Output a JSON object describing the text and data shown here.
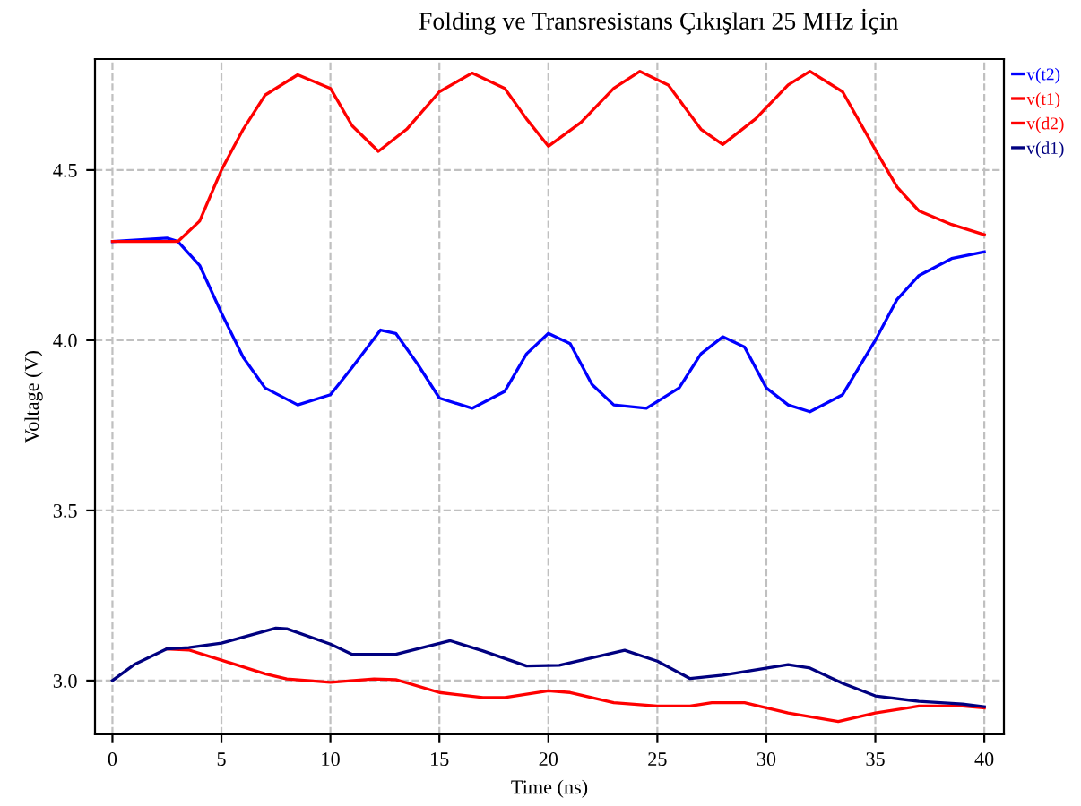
{
  "chart_data": {
    "type": "line",
    "title": "Folding ve Transresistans Çıkışları 25 MHz İçin",
    "xlabel": "Time (ns)",
    "ylabel": "Voltage (V)",
    "xlim": [
      -0.8,
      40.9
    ],
    "ylim": [
      2.842,
      4.826
    ],
    "xticks": [
      0,
      5,
      10,
      15,
      20,
      25,
      30,
      35,
      40
    ],
    "yticks": [
      {
        "value": 3.0,
        "label": "3.0"
      },
      {
        "value": 3.5,
        "label": "3.5"
      },
      {
        "value": 4.0,
        "label": "4.0"
      },
      {
        "value": 4.5,
        "label": "4.5"
      }
    ],
    "grid": true,
    "legend": "top right",
    "line_style": "solid",
    "marker": "none",
    "series": [
      {
        "name": "v(t2)",
        "color": "#0000ff",
        "x": [
          0,
          2.5,
          3,
          4,
          5,
          6,
          7,
          8.5,
          10,
          11,
          12.3,
          13,
          14,
          15,
          16.5,
          18,
          19,
          20,
          21,
          22,
          23,
          24.5,
          26,
          27,
          28,
          29,
          30,
          31,
          32,
          33.5,
          35,
          36,
          37,
          38.5,
          40
        ],
        "values": [
          4.29,
          4.3,
          4.29,
          4.22,
          4.08,
          3.95,
          3.86,
          3.81,
          3.84,
          3.92,
          4.03,
          4.02,
          3.93,
          3.83,
          3.8,
          3.85,
          3.96,
          4.02,
          3.99,
          3.87,
          3.81,
          3.8,
          3.86,
          3.96,
          4.01,
          3.98,
          3.86,
          3.81,
          3.79,
          3.84,
          4.0,
          4.12,
          4.19,
          4.24,
          4.26
        ]
      },
      {
        "name": "v(t1)",
        "color": "#ff0000",
        "x": [
          0,
          3,
          4,
          5,
          6,
          7,
          8.5,
          10,
          11,
          12.2,
          13.5,
          15,
          16.5,
          18,
          19,
          20,
          21.5,
          23,
          24.2,
          25.5,
          27,
          28,
          29.5,
          31,
          32,
          33.5,
          35,
          36,
          37,
          38.5,
          40
        ],
        "values": [
          4.29,
          4.29,
          4.35,
          4.5,
          4.62,
          4.72,
          4.78,
          4.74,
          4.63,
          4.555,
          4.62,
          4.73,
          4.785,
          4.74,
          4.65,
          4.57,
          4.64,
          4.74,
          4.79,
          4.75,
          4.62,
          4.575,
          4.65,
          4.75,
          4.79,
          4.73,
          4.56,
          4.45,
          4.38,
          4.34,
          4.31
        ]
      },
      {
        "name": "v(d2)",
        "color": "#ff0000",
        "x": [
          2.5,
          3.5,
          5,
          7,
          8,
          10,
          12,
          13,
          15,
          17,
          18,
          20,
          21,
          23,
          25,
          26.5,
          27.5,
          29,
          31,
          33.3,
          35,
          37,
          39,
          40
        ],
        "values": [
          3.093,
          3.09,
          3.06,
          3.02,
          3.005,
          2.995,
          3.005,
          3.003,
          2.965,
          2.95,
          2.95,
          2.97,
          2.965,
          2.935,
          2.925,
          2.925,
          2.935,
          2.935,
          2.905,
          2.88,
          2.905,
          2.925,
          2.925,
          2.92
        ]
      },
      {
        "name": "v(d1)",
        "color": "#000080",
        "x": [
          0,
          1,
          2.5,
          3.5,
          5,
          7.5,
          8,
          10,
          11,
          13,
          15.5,
          17,
          19,
          20.5,
          23.5,
          25,
          26.5,
          28,
          31,
          32,
          33.5,
          35,
          37,
          39,
          40
        ],
        "values": [
          3.0,
          3.047,
          3.093,
          3.097,
          3.11,
          3.154,
          3.152,
          3.107,
          3.077,
          3.077,
          3.117,
          3.087,
          3.043,
          3.045,
          3.089,
          3.057,
          3.006,
          3.016,
          3.047,
          3.037,
          2.992,
          2.955,
          2.939,
          2.931,
          2.923
        ]
      }
    ]
  }
}
